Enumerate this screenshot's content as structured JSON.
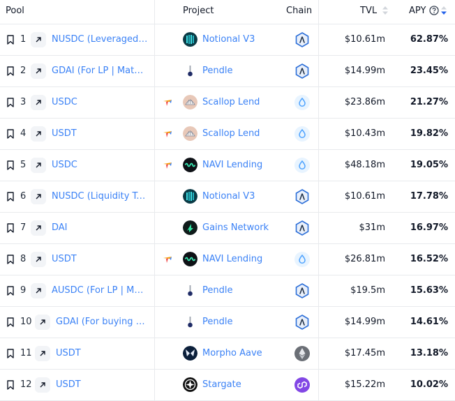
{
  "header": {
    "pool": "Pool",
    "project": "Project",
    "chain": "Chain",
    "tvl": "TVL",
    "apy": "APY"
  },
  "rows": [
    {
      "rank": "1",
      "pool": "NUSDC (Leveraged Li…",
      "yield_icon": false,
      "project": "Notional V3",
      "project_logo": "notional-logo",
      "chain": "arbitrum-icon",
      "tvl": "$10.61m",
      "apy": "62.87%"
    },
    {
      "rank": "2",
      "pool": "GDAI (For LP | Matu…",
      "yield_icon": false,
      "project": "Pendle",
      "project_logo": "pendle-logo",
      "chain": "arbitrum-icon",
      "tvl": "$14.99m",
      "apy": "23.45%"
    },
    {
      "rank": "3",
      "pool": "USDC",
      "yield_icon": true,
      "project": "Scallop Lend",
      "project_logo": "scallop-logo",
      "chain": "sui-icon",
      "tvl": "$23.86m",
      "apy": "21.27%"
    },
    {
      "rank": "4",
      "pool": "USDT",
      "yield_icon": true,
      "project": "Scallop Lend",
      "project_logo": "scallop-logo",
      "chain": "sui-icon",
      "tvl": "$10.43m",
      "apy": "19.82%"
    },
    {
      "rank": "5",
      "pool": "USDC",
      "yield_icon": true,
      "project": "NAVI Lending",
      "project_logo": "navi-logo",
      "chain": "sui-icon",
      "tvl": "$48.18m",
      "apy": "19.05%"
    },
    {
      "rank": "6",
      "pool": "NUSDC (Liquidity To…",
      "yield_icon": false,
      "project": "Notional V3",
      "project_logo": "notional-logo",
      "chain": "arbitrum-icon",
      "tvl": "$10.61m",
      "apy": "17.78%"
    },
    {
      "rank": "7",
      "pool": "DAI",
      "yield_icon": false,
      "project": "Gains Network",
      "project_logo": "gains-logo",
      "chain": "arbitrum-icon",
      "tvl": "$31m",
      "apy": "16.97%"
    },
    {
      "rank": "8",
      "pool": "USDT",
      "yield_icon": true,
      "project": "NAVI Lending",
      "project_logo": "navi-logo",
      "chain": "sui-icon",
      "tvl": "$26.81m",
      "apy": "16.52%"
    },
    {
      "rank": "9",
      "pool": "AUSDC (For LP | Mat…",
      "yield_icon": false,
      "project": "Pendle",
      "project_logo": "pendle-logo",
      "chain": "arbitrum-icon",
      "tvl": "$19.5m",
      "apy": "15.63%"
    },
    {
      "rank": "10",
      "pool": "GDAI (For buying PT…",
      "yield_icon": false,
      "project": "Pendle",
      "project_logo": "pendle-logo",
      "chain": "arbitrum-icon",
      "tvl": "$14.99m",
      "apy": "14.61%"
    },
    {
      "rank": "11",
      "pool": "USDT",
      "yield_icon": false,
      "project": "Morpho Aave",
      "project_logo": "morpho-logo",
      "chain": "ethereum-icon",
      "tvl": "$17.45m",
      "apy": "13.18%"
    },
    {
      "rank": "12",
      "pool": "USDT",
      "yield_icon": false,
      "project": "Stargate",
      "project_logo": "stargate-logo",
      "chain": "polygon-icon",
      "tvl": "$15.22m",
      "apy": "10.02%"
    }
  ],
  "colors": {
    "link": "#3b82f6",
    "arbitrum": "#2d6fd8",
    "sui": "#4da2ff",
    "polygon": "#8247e5",
    "border": "#e8eaed"
  }
}
